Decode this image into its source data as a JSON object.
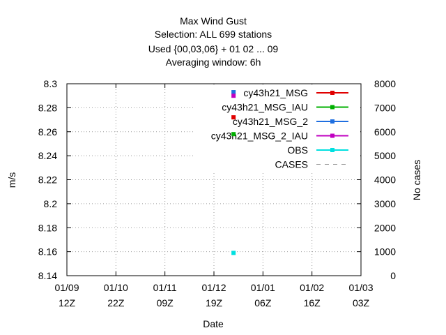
{
  "chart_data": {
    "type": "scatter",
    "title": [
      "Max Wind Gust",
      "Selection: ALL    699 stations",
      "Used {00,03,06} + 01 02 ... 09",
      "Averaging window:  6h"
    ],
    "xlabel": "Date",
    "ylabel": "m/s",
    "y2label": "No cases",
    "x_ticks": [
      {
        "top": "01/09",
        "bottom": "12Z"
      },
      {
        "top": "01/10",
        "bottom": "22Z"
      },
      {
        "top": "01/11",
        "bottom": "09Z"
      },
      {
        "top": "01/12",
        "bottom": "19Z"
      },
      {
        "top": "01/01",
        "bottom": "06Z"
      },
      {
        "top": "01/02",
        "bottom": "16Z"
      },
      {
        "top": "01/03",
        "bottom": "03Z"
      }
    ],
    "y_ticks": [
      "8.14",
      "8.16",
      "8.18",
      "8.2",
      "8.22",
      "8.24",
      "8.26",
      "8.28",
      "8.3"
    ],
    "y2_ticks": [
      "0",
      "1000",
      "2000",
      "3000",
      "4000",
      "5000",
      "6000",
      "7000",
      "8000"
    ],
    "ylim": [
      8.14,
      8.3
    ],
    "y2lim": [
      0,
      8000
    ],
    "grid": true,
    "legend_position": "top-right",
    "series": [
      {
        "name": "cy43h21_MSG",
        "color": "#e00000",
        "x_index": 3.4,
        "values": [
          8.272
        ]
      },
      {
        "name": "cy43h21_MSG_IAU",
        "color": "#00b000",
        "x_index": 3.4,
        "values": [
          8.258
        ]
      },
      {
        "name": "cy43h21_MSG_2",
        "color": "#1f6fe0",
        "x_index": 3.4,
        "values": [
          8.293
        ]
      },
      {
        "name": "cy43h21_MSG_2_IAU",
        "color": "#c000c0",
        "x_index": 3.4,
        "values": [
          8.29
        ]
      },
      {
        "name": "OBS",
        "color": "#00e0e0",
        "x_index": 3.4,
        "values": [
          8.159
        ]
      },
      {
        "name": "CASES",
        "color": "#999999",
        "dashed": true,
        "values": []
      }
    ]
  }
}
